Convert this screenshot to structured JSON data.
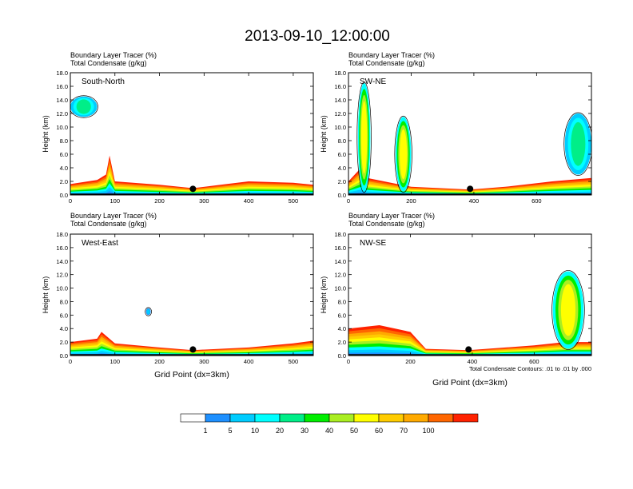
{
  "title": "2013-09-10_12:00:00",
  "shared": {
    "ylabel": "Height (km)",
    "yticks": [
      "0.0",
      "2.0",
      "4.0",
      "6.0",
      "8.0",
      "10.0",
      "12.0",
      "14.0",
      "16.0",
      "18.0"
    ],
    "ylim": [
      0,
      18
    ],
    "xlabel": "Grid Point (dx=3km)"
  },
  "panels": [
    {
      "label": "South-North",
      "sub1": "Boundary Layer Tracer   (%)",
      "sub2": "Total Condensate   (g/kg)",
      "xlim": [
        0,
        545
      ],
      "xticks": [
        "0",
        "100",
        "200",
        "300",
        "400",
        "500"
      ],
      "marker_x": 275
    },
    {
      "label": "SW-NE",
      "sub1": "Boundary Layer Tracer   (%)",
      "sub2": "Total Condensate   (g/kg)",
      "xlim": [
        0,
        775
      ],
      "xticks": [
        "0",
        "200",
        "400",
        "600"
      ],
      "marker_x": 388
    },
    {
      "label": "West-East",
      "sub1": "Boundary Layer Tracer   (%)",
      "sub2": "Total Condensate   (g/kg)",
      "xlim": [
        0,
        545
      ],
      "xticks": [
        "0",
        "100",
        "200",
        "300",
        "400",
        "500"
      ],
      "marker_x": 275
    },
    {
      "label": "NW-SE",
      "sub1": "Boundary Layer Tracer   (%)",
      "sub2": "Total Condensate   (g/kg)",
      "xlim": [
        0,
        785
      ],
      "xticks": [
        "0",
        "200",
        "400",
        "600"
      ],
      "marker_x": 388,
      "note": "Total Condensate Contours: .01 to .01 by .000"
    }
  ],
  "colorbar": {
    "colors": [
      "#ffffff",
      "#1e90ff",
      "#00ccff",
      "#00ffff",
      "#00ee88",
      "#00ee00",
      "#aaee22",
      "#ffff00",
      "#ffcc00",
      "#ffaa00",
      "#ff6600",
      "#ff2200"
    ],
    "labels": [
      "1",
      "5",
      "10",
      "20",
      "30",
      "40",
      "50",
      "60",
      "70",
      "100"
    ]
  },
  "chart_data": {
    "type": "heatmap",
    "description_of_fields": "Vertical cross-sections of boundary layer tracer (%) shaded with total condensate contours",
    "panels": [
      {
        "name": "South-North",
        "tracer_top_km": [
          [
            0,
            1.6
          ],
          [
            60,
            2.2
          ],
          [
            80,
            3.0
          ],
          [
            88,
            5.8
          ],
          [
            100,
            2.0
          ],
          [
            200,
            1.5
          ],
          [
            275,
            1.0
          ],
          [
            350,
            1.6
          ],
          [
            400,
            2.0
          ],
          [
            500,
            1.8
          ],
          [
            545,
            1.5
          ]
        ],
        "cells": [
          {
            "x": [
              0,
              60
            ],
            "y": [
              11.5,
              14.5
            ],
            "level": 30
          }
        ]
      },
      {
        "name": "SW-NE",
        "tracer_top_km": [
          [
            0,
            2.0
          ],
          [
            40,
            4.0
          ],
          [
            60,
            2.5
          ],
          [
            200,
            1.2
          ],
          [
            388,
            0.8
          ],
          [
            500,
            1.2
          ],
          [
            650,
            2.0
          ],
          [
            775,
            2.5
          ]
        ],
        "cells": [
          {
            "x": [
              30,
              70
            ],
            "y": [
              0.5,
              16.5
            ],
            "level": 40
          },
          {
            "x": [
              150,
              200
            ],
            "y": [
              0.5,
              11.5
            ],
            "level": 40
          },
          {
            "x": [
              690,
              775
            ],
            "y": [
              3,
              12
            ],
            "level": 20
          }
        ]
      },
      {
        "name": "West-East",
        "tracer_top_km": [
          [
            0,
            2.0
          ],
          [
            60,
            2.5
          ],
          [
            70,
            3.5
          ],
          [
            100,
            1.8
          ],
          [
            200,
            1.2
          ],
          [
            275,
            0.8
          ],
          [
            400,
            1.2
          ],
          [
            500,
            1.8
          ],
          [
            545,
            2.2
          ]
        ],
        "cells": [
          {
            "x": [
              170,
              180
            ],
            "y": [
              6,
              7
            ],
            "level": 10
          }
        ]
      },
      {
        "name": "NW-SE",
        "tracer_top_km": [
          [
            0,
            4.0
          ],
          [
            100,
            4.5
          ],
          [
            200,
            3.5
          ],
          [
            250,
            1.0
          ],
          [
            388,
            0.8
          ],
          [
            600,
            1.5
          ],
          [
            700,
            2.0
          ],
          [
            785,
            2.0
          ]
        ],
        "cells": [
          {
            "x": [
              660,
              760
            ],
            "y": [
              1,
              12.5
            ],
            "level": 40
          }
        ]
      }
    ]
  }
}
